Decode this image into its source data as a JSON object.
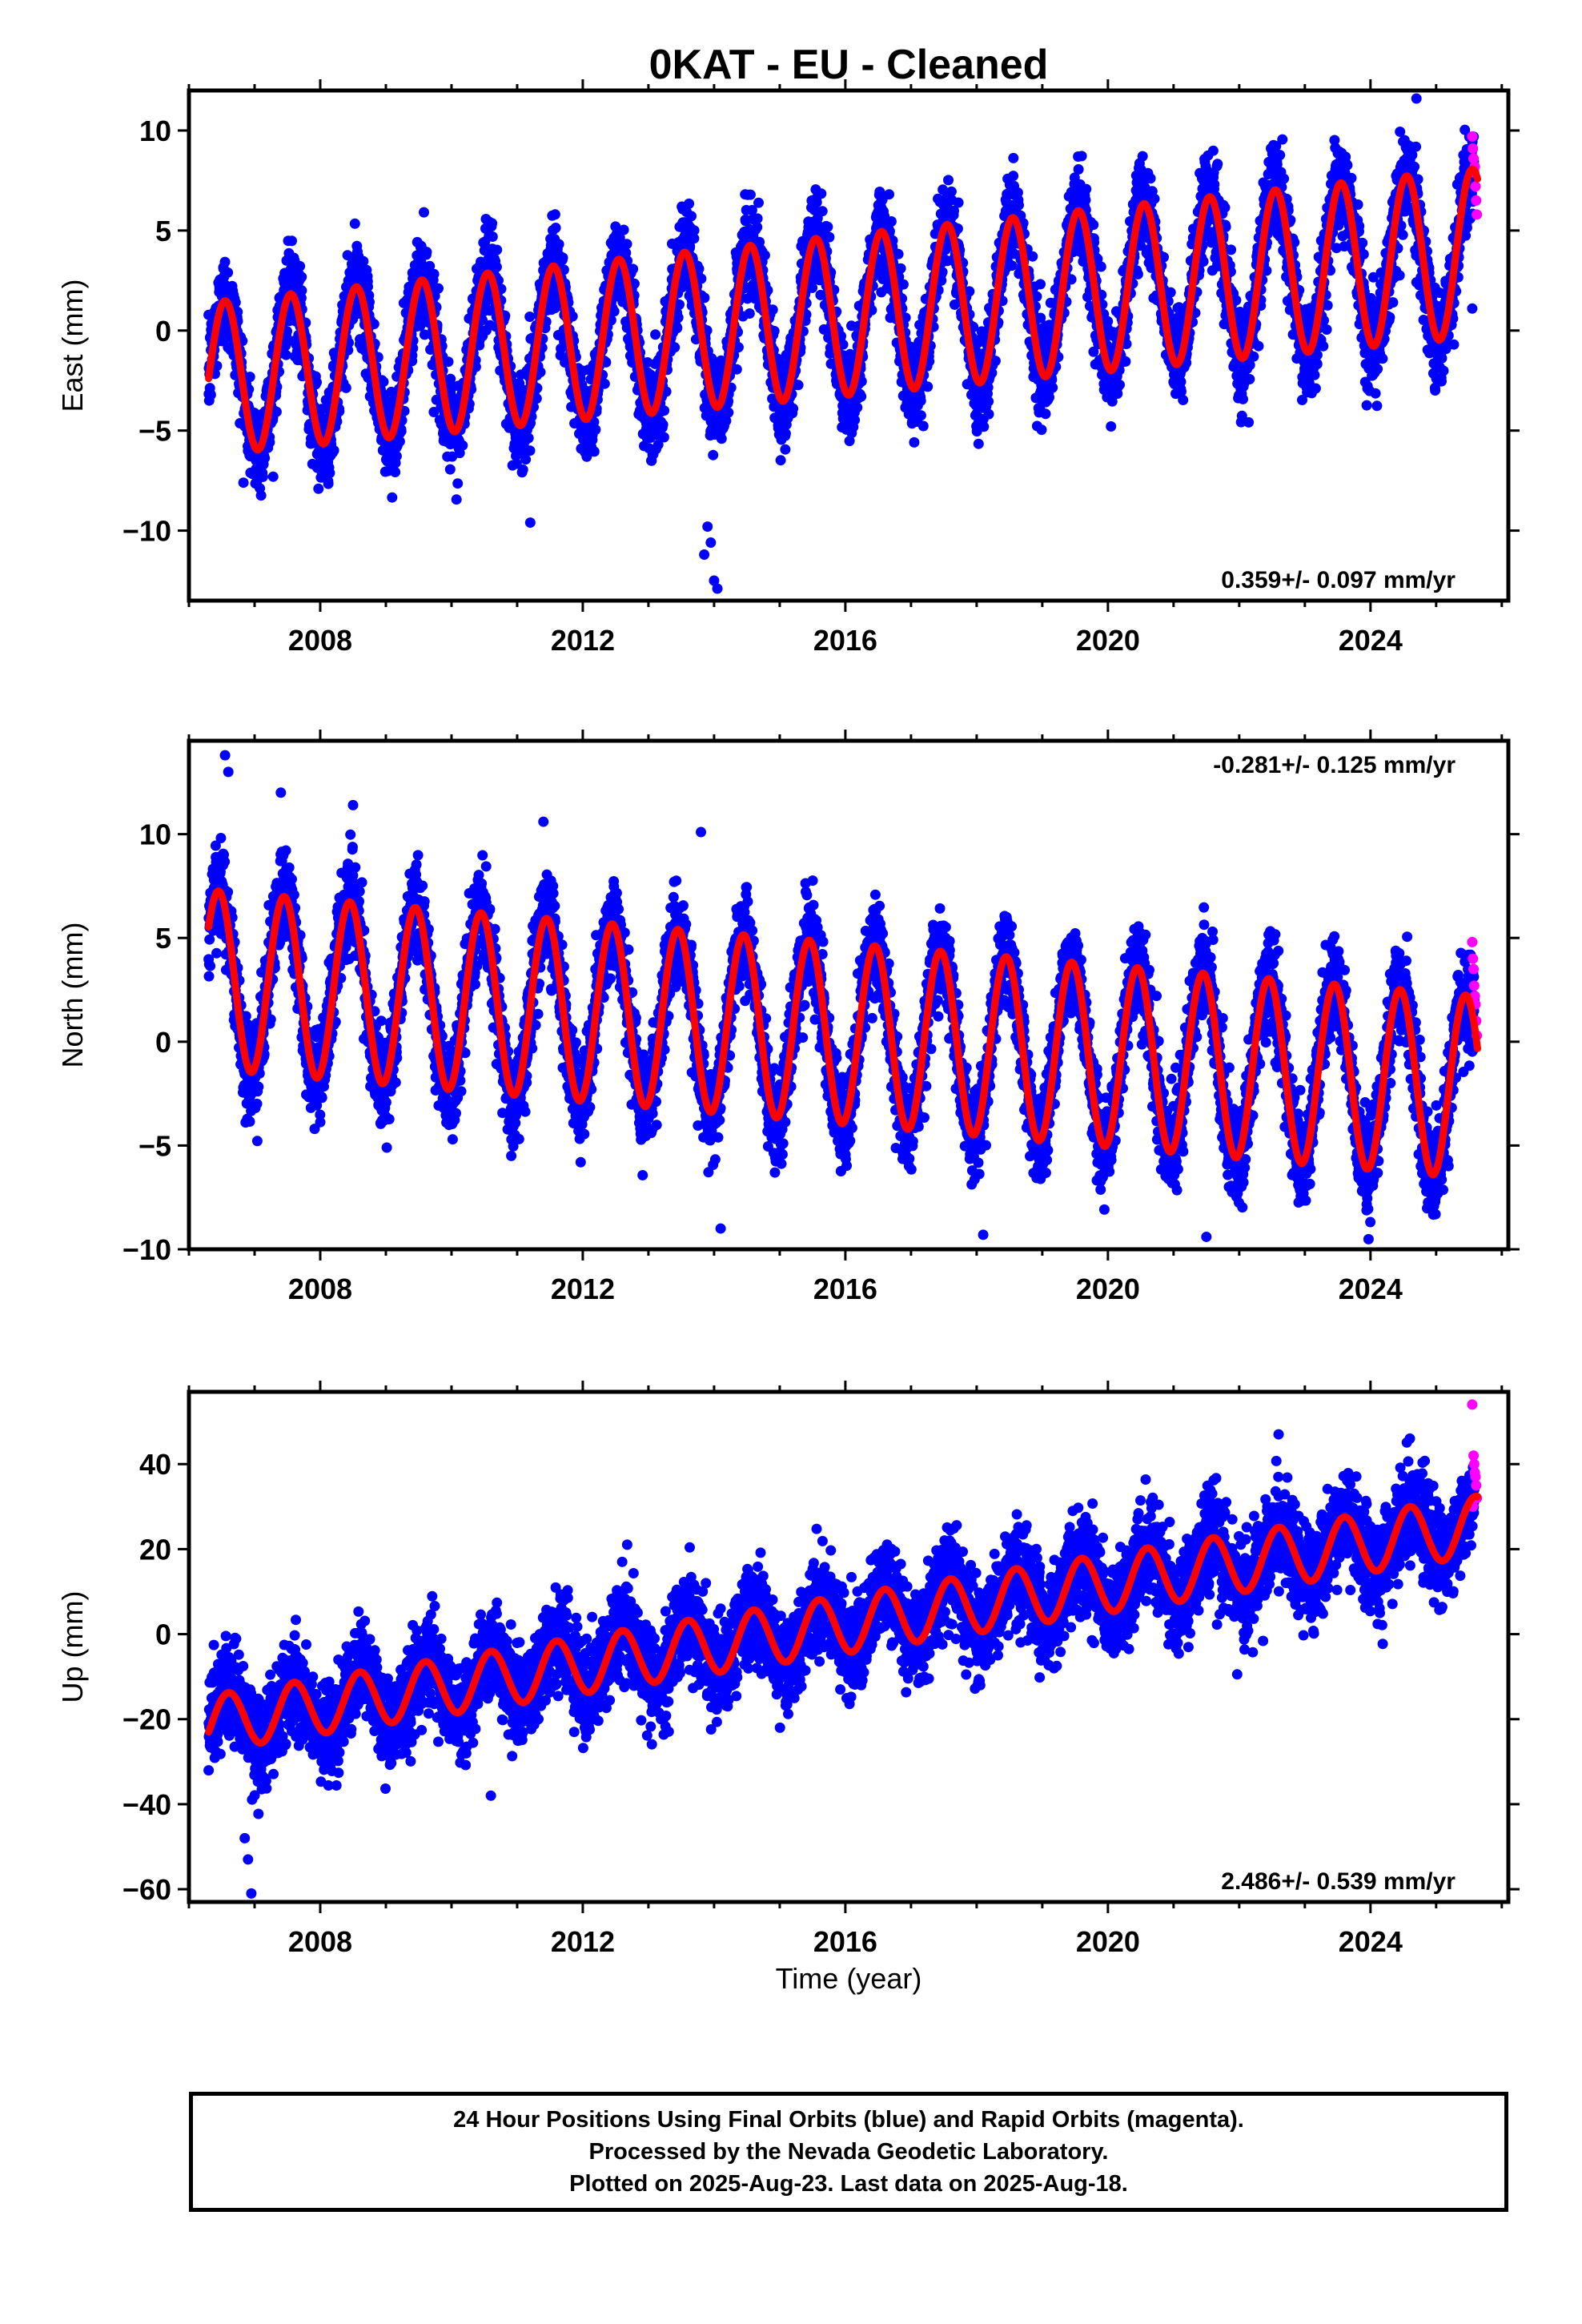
{
  "title": "0KAT  - EU - Cleaned",
  "xlabel": "Time (year)",
  "footer": {
    "line1": "24 Hour Positions Using Final Orbits (blue) and Rapid Orbits (magenta).",
    "line2": "Processed by the Nevada Geodetic Laboratory.",
    "line3": "Plotted on 2025-Aug-23. Last data on 2025-Aug-18."
  },
  "colors": {
    "final_orbits": "#0000ff",
    "rapid_orbits": "#ff00ff",
    "model": "#ff0000"
  },
  "chart_data": [
    {
      "type": "scatter",
      "ylabel": "East (mm)",
      "xlim": [
        2006.0,
        2026.1
      ],
      "ylim": [
        -13.5,
        12
      ],
      "xticks": [
        2008,
        2012,
        2016,
        2020,
        2024
      ],
      "yticks": [
        -10,
        -5,
        0,
        5,
        10
      ],
      "rate": "0.359+/- 0.097 mm/yr",
      "rate_position": "bottom-right",
      "data_span": [
        2006.3,
        2025.63
      ],
      "model": {
        "mean_start": -2.4,
        "mean_end": 3.9,
        "amplitude_start": 3.8,
        "amplitude_end": 4.2,
        "peak_phase": 0.55
      },
      "outliers": [
        [
          2013.9,
          -9.8
        ],
        [
          2013.95,
          -10.6
        ],
        [
          2014.0,
          -12.5
        ],
        [
          2014.05,
          -12.9
        ],
        [
          2013.85,
          -11.2
        ],
        [
          2024.7,
          11.6
        ],
        [
          2025.55,
          1.1
        ],
        [
          2011.2,
          -9.6
        ]
      ],
      "rapid_points": [
        [
          2025.55,
          9.7
        ],
        [
          2025.57,
          8.6
        ],
        [
          2025.58,
          7.9
        ],
        [
          2025.6,
          7.2
        ],
        [
          2025.61,
          6.5
        ],
        [
          2025.62,
          5.8
        ],
        [
          2025.59,
          8.2
        ],
        [
          2025.56,
          9.1
        ]
      ]
    },
    {
      "type": "scatter",
      "ylabel": "North (mm)",
      "xlim": [
        2006.0,
        2026.1
      ],
      "ylim": [
        -10,
        14.5
      ],
      "xticks": [
        2008,
        2012,
        2016,
        2020,
        2024
      ],
      "yticks": [
        -10,
        -5,
        0,
        5,
        10
      ],
      "rate": "-0.281+/- 0.125 mm/yr",
      "rate_position": "top-right",
      "data_span": [
        2006.3,
        2025.63
      ],
      "model": {
        "mean_start": 3.0,
        "mean_end": -2.2,
        "amplitude_start": 4.3,
        "amplitude_end": 4.4,
        "peak_phase": 0.45
      },
      "outliers": [
        [
          2006.55,
          13.8
        ],
        [
          2006.6,
          13.0
        ],
        [
          2007.4,
          12.0
        ],
        [
          2008.5,
          11.4
        ],
        [
          2013.8,
          10.1
        ],
        [
          2011.4,
          10.6
        ],
        [
          2014.1,
          -9.0
        ],
        [
          2018.1,
          -9.3
        ],
        [
          2021.5,
          -9.4
        ]
      ],
      "rapid_points": [
        [
          2025.55,
          4.8
        ],
        [
          2025.57,
          3.5
        ],
        [
          2025.58,
          2.7
        ],
        [
          2025.6,
          1.8
        ],
        [
          2025.61,
          1.0
        ],
        [
          2025.62,
          0.3
        ],
        [
          2025.59,
          2.2
        ],
        [
          2025.56,
          4.0
        ]
      ]
    },
    {
      "type": "scatter",
      "ylabel": "Up (mm)",
      "xlim": [
        2006.0,
        2026.1
      ],
      "ylim": [
        -63,
        57
      ],
      "xticks": [
        2008,
        2012,
        2016,
        2020,
        2024
      ],
      "yticks": [
        -60,
        -40,
        -20,
        0,
        20,
        40
      ],
      "rate": "2.486+/- 0.539 mm/yr",
      "rate_position": "bottom-right",
      "data_span": [
        2006.3,
        2025.63
      ],
      "model": {
        "mean_start": -21,
        "mean_end": 25.5,
        "amplitude_start": 6.5,
        "amplitude_end": 7.0,
        "peak_phase": 0.6
      },
      "outliers": [
        [
          2006.95,
          -61
        ],
        [
          2006.9,
          -53
        ],
        [
          2006.85,
          -48
        ],
        [
          2022.6,
          47
        ],
        [
          2024.6,
          46
        ],
        [
          2012.6,
          17
        ],
        [
          2010.6,
          -38
        ]
      ],
      "rapid_points": [
        [
          2025.55,
          54
        ],
        [
          2025.57,
          42
        ],
        [
          2025.58,
          40
        ],
        [
          2025.6,
          37
        ],
        [
          2025.61,
          35
        ],
        [
          2025.62,
          32
        ],
        [
          2025.59,
          38
        ],
        [
          2025.56,
          30
        ]
      ]
    }
  ]
}
